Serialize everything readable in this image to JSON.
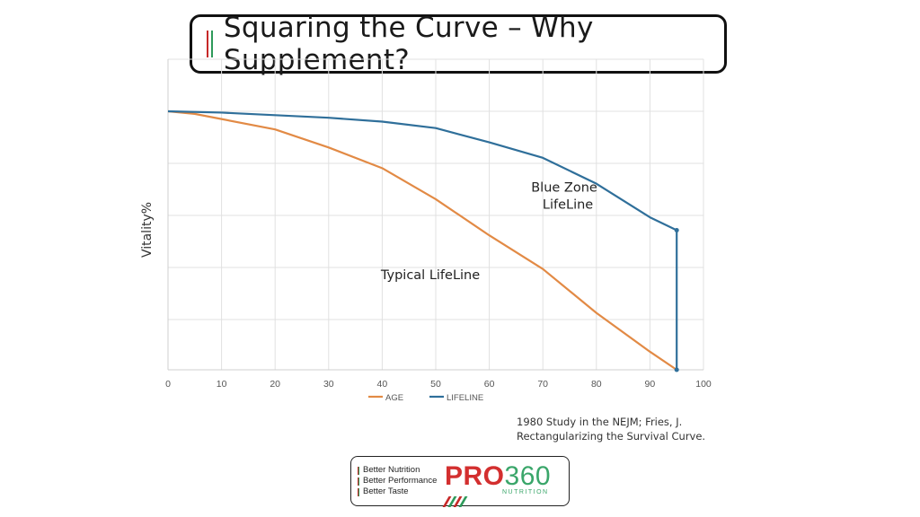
{
  "title": "Squaring the Curve – Why Supplement?",
  "colors": {
    "title_bar_red": "#c62828",
    "title_bar_green": "#2e9a5a",
    "age_line": "#e28a45",
    "lifeline": "#2f6f9a",
    "grid": "#e0e0e0"
  },
  "chart_data": {
    "type": "line",
    "ylabel": "Vitality%",
    "xlabel": "",
    "xlim": [
      0,
      100
    ],
    "ylim": [
      0,
      100
    ],
    "x_ticks": [
      "0",
      "10",
      "20",
      "30",
      "40",
      "50",
      "60",
      "70",
      "80",
      "90",
      "100"
    ],
    "grid": true,
    "legend_position": "bottom",
    "series": [
      {
        "name": "AGE",
        "x": [
          0,
          5,
          10,
          20,
          30,
          40,
          50,
          60,
          70,
          80,
          90,
          95
        ],
        "y": [
          100,
          99,
          97,
          93,
          86,
          78,
          66,
          52,
          39,
          22,
          7,
          0
        ]
      },
      {
        "name": "LIFELINE",
        "x": [
          0,
          10,
          20,
          30,
          40,
          50,
          60,
          70,
          80,
          90,
          95,
          95
        ],
        "y": [
          100,
          99.5,
          98.5,
          97.5,
          96,
          93.5,
          88,
          82,
          72,
          59,
          54,
          0
        ]
      }
    ],
    "annotations": [
      {
        "text": [
          "Blue Zone",
          "LifeLine"
        ],
        "x": 74,
        "y": 69
      },
      {
        "text": [
          "Typical LifeLine"
        ],
        "x": 49,
        "y": 35
      }
    ]
  },
  "source": {
    "line1": "1980 Study in the NEJM; Fries, J.",
    "line2": "Rectangularizing the Survival Curve."
  },
  "logo": {
    "tagline": [
      "Better Nutrition",
      "Better Performance",
      "Better Taste"
    ],
    "brand_pro": "PRO",
    "brand_num": "360",
    "brand_sub": "NUTRITION"
  }
}
